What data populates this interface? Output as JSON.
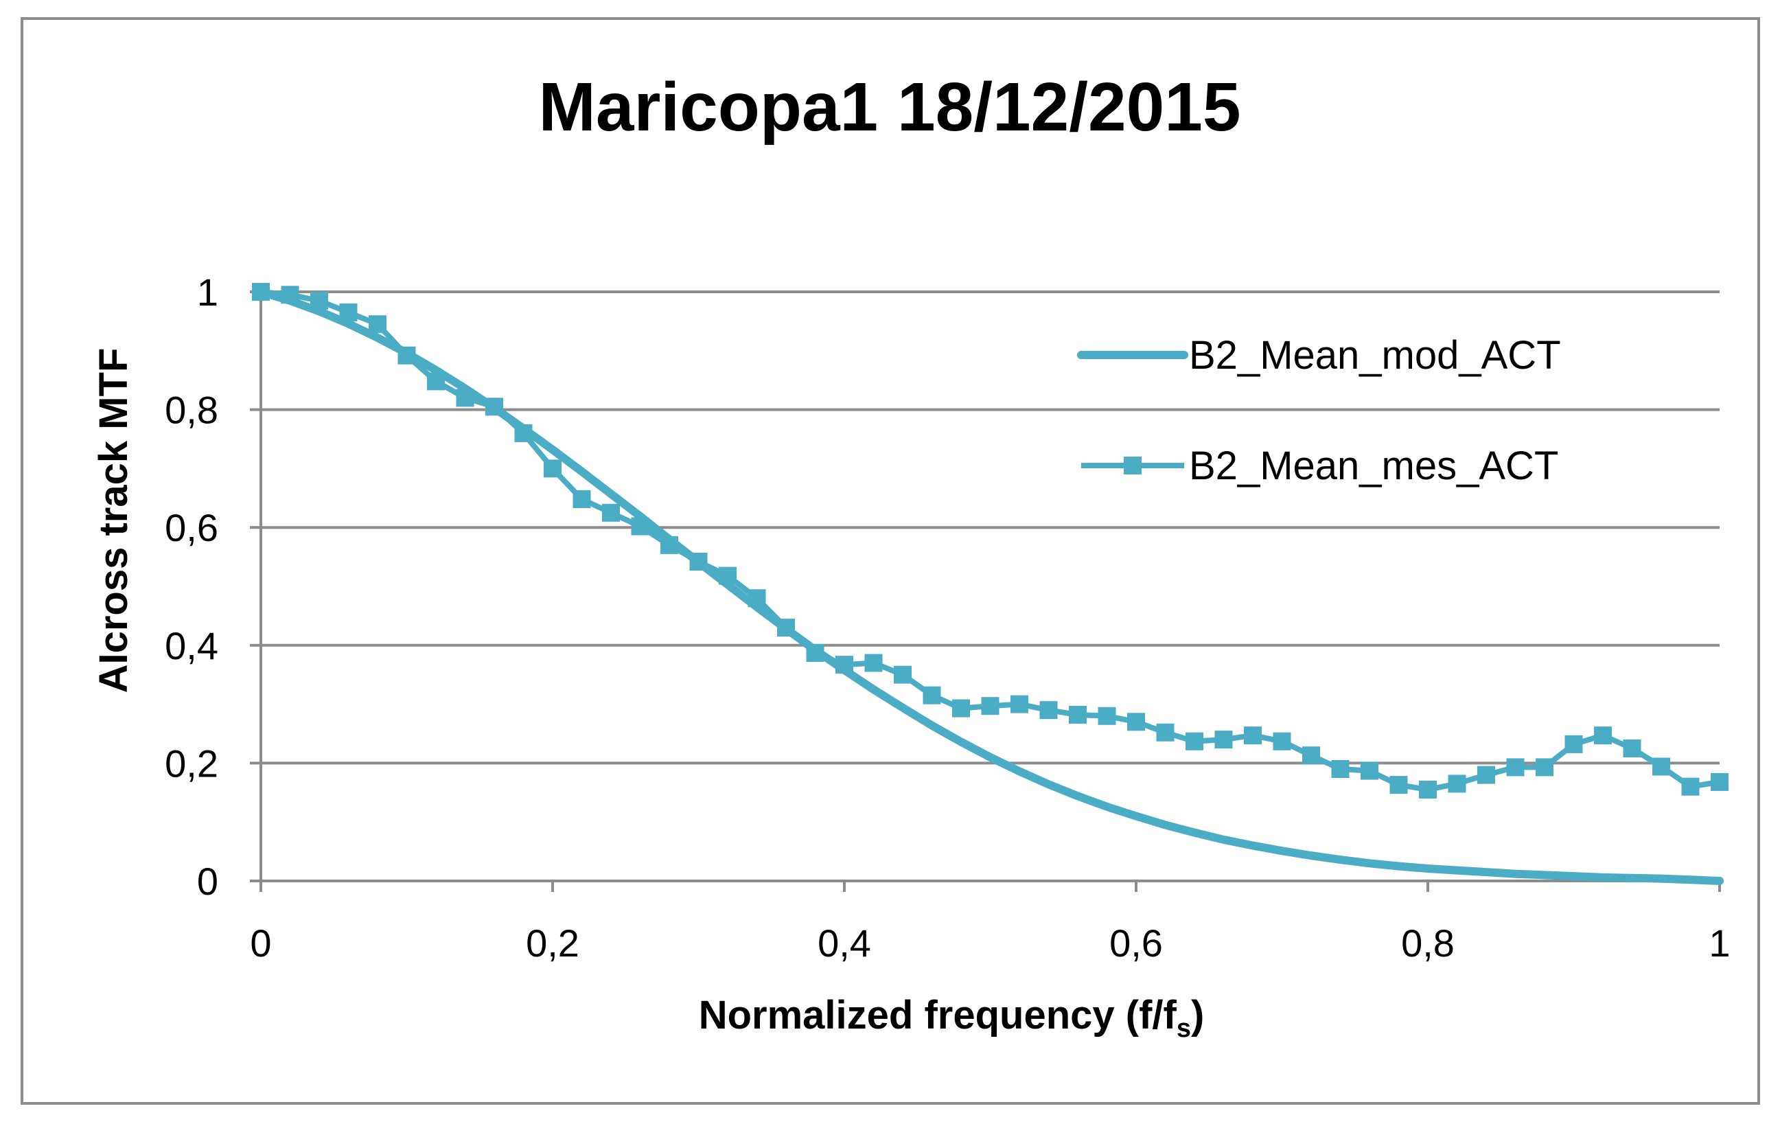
{
  "chart_data": {
    "type": "line",
    "title": "Maricopa1 18/12/2015",
    "xlabel": "Normalized frequency (f/f",
    "xlabel_subscript": "s",
    "xlabel_suffix": ")",
    "ylabel": "AIcross track MTF",
    "xlim": [
      0,
      1
    ],
    "ylim": [
      0,
      1
    ],
    "x_ticks": [
      0,
      0.2,
      0.4,
      0.6,
      0.8,
      1
    ],
    "x_tick_labels": [
      "0",
      "0,2",
      "0,4",
      "0,6",
      "0,8",
      "1"
    ],
    "y_ticks": [
      0,
      0.2,
      0.4,
      0.6,
      0.8,
      1
    ],
    "y_tick_labels": [
      "0",
      "0,2",
      "0,4",
      "0,6",
      "0,8",
      "1"
    ],
    "grid": "horizontal",
    "legend_position": "top-right",
    "series": [
      {
        "name": "B2_Mean_mod_ACT",
        "marker": "none",
        "color": "#4bacc6",
        "x": [
          0,
          0.02,
          0.04,
          0.06,
          0.08,
          0.1,
          0.12,
          0.14,
          0.16,
          0.18,
          0.2,
          0.22,
          0.24,
          0.26,
          0.28,
          0.3,
          0.32,
          0.34,
          0.36,
          0.38,
          0.4,
          0.42,
          0.44,
          0.46,
          0.48,
          0.5,
          0.52,
          0.54,
          0.56,
          0.58,
          0.6,
          0.62,
          0.64,
          0.66,
          0.68,
          0.7,
          0.72,
          0.74,
          0.76,
          0.78,
          0.8,
          0.82,
          0.84,
          0.86,
          0.88,
          0.9,
          0.92,
          0.94,
          0.96,
          0.98,
          1
        ],
        "values": [
          1.0,
          0.985,
          0.967,
          0.946,
          0.922,
          0.896,
          0.867,
          0.836,
          0.803,
          0.768,
          0.732,
          0.695,
          0.657,
          0.619,
          0.58,
          0.541,
          0.503,
          0.465,
          0.428,
          0.392,
          0.358,
          0.325,
          0.294,
          0.264,
          0.236,
          0.21,
          0.186,
          0.164,
          0.144,
          0.126,
          0.11,
          0.095,
          0.082,
          0.07,
          0.06,
          0.051,
          0.043,
          0.036,
          0.03,
          0.025,
          0.021,
          0.018,
          0.015,
          0.012,
          0.01,
          0.008,
          0.006,
          0.005,
          0.004,
          0.002,
          0.0
        ]
      },
      {
        "name": "B2_Mean_mes_ACT",
        "marker": "square",
        "color": "#4bacc6",
        "x": [
          0,
          0.02,
          0.04,
          0.06,
          0.08,
          0.1,
          0.12,
          0.14,
          0.16,
          0.18,
          0.2,
          0.22,
          0.24,
          0.26,
          0.28,
          0.3,
          0.32,
          0.34,
          0.36,
          0.38,
          0.4,
          0.42,
          0.44,
          0.46,
          0.48,
          0.5,
          0.52,
          0.54,
          0.56,
          0.58,
          0.6,
          0.62,
          0.64,
          0.66,
          0.68,
          0.7,
          0.72,
          0.74,
          0.76,
          0.78,
          0.8,
          0.82,
          0.84,
          0.86,
          0.88,
          0.9,
          0.92,
          0.94,
          0.96,
          0.98,
          1
        ],
        "values": [
          1.0,
          0.995,
          0.985,
          0.965,
          0.945,
          0.892,
          0.848,
          0.82,
          0.805,
          0.76,
          0.7,
          0.648,
          0.625,
          0.602,
          0.57,
          0.542,
          0.518,
          0.48,
          0.43,
          0.387,
          0.367,
          0.37,
          0.35,
          0.315,
          0.293,
          0.297,
          0.3,
          0.29,
          0.282,
          0.28,
          0.27,
          0.252,
          0.237,
          0.24,
          0.247,
          0.237,
          0.213,
          0.19,
          0.187,
          0.163,
          0.155,
          0.165,
          0.18,
          0.193,
          0.193,
          0.232,
          0.247,
          0.225,
          0.194,
          0.16,
          0.168
        ]
      }
    ]
  }
}
